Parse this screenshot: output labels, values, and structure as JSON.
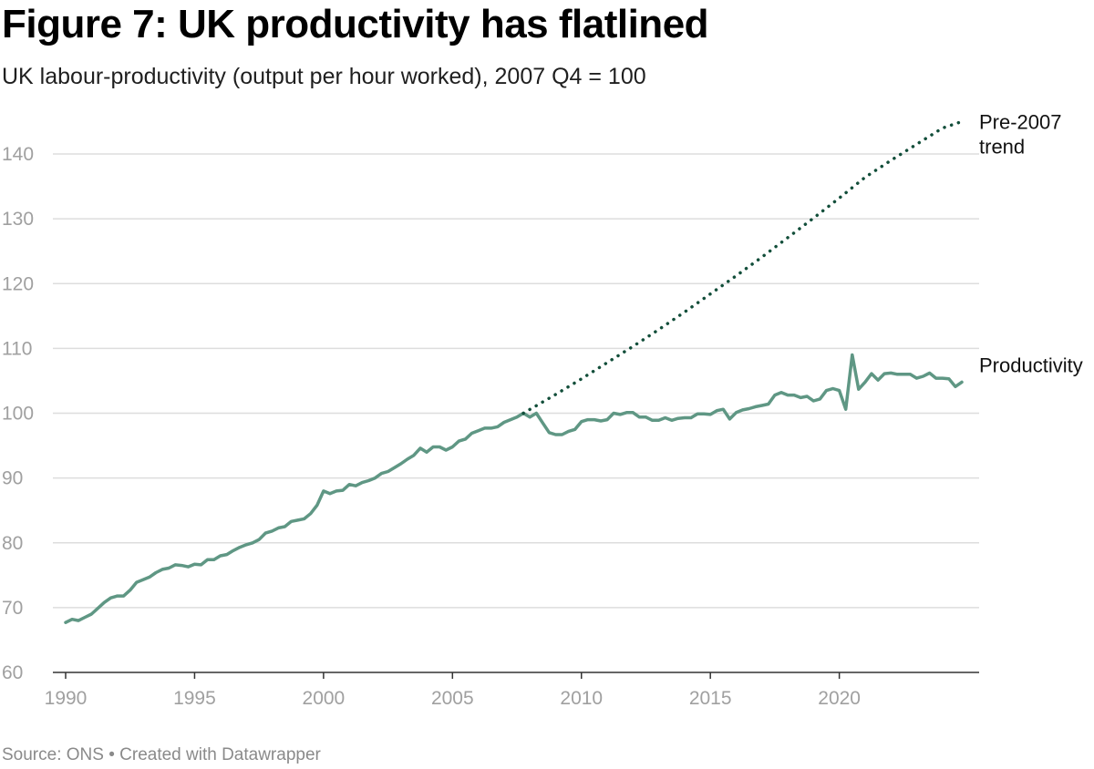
{
  "header": {
    "title": "Figure 7: UK productivity has flatlined",
    "subtitle": "UK labour-productivity (output per hour worked), 2007 Q4 = 100"
  },
  "footer": {
    "source": "Source: ONS • Created with Datawrapper"
  },
  "colors": {
    "productivity": "#5f9784",
    "trend": "#124e3a",
    "grid": "#dddddd",
    "axis": "#333333"
  },
  "chart_data": {
    "type": "line",
    "title": "Figure 7: UK productivity has flatlined",
    "xlabel": "",
    "ylabel": "",
    "xlim": [
      1989.75,
      2025.0
    ],
    "ylim": [
      60,
      145
    ],
    "x_ticks": [
      1990,
      1995,
      2000,
      2005,
      2010,
      2015,
      2020
    ],
    "x_tick_labels": [
      "1990",
      "1995",
      "2000",
      "2005",
      "2010",
      "2015",
      "2020"
    ],
    "y_ticks": [
      60,
      70,
      80,
      90,
      100,
      110,
      120,
      130,
      140
    ],
    "y_tick_labels": [
      "60",
      "70",
      "80",
      "90",
      "100",
      "110",
      "120",
      "130",
      "140"
    ],
    "grid": true,
    "series": [
      {
        "name": "Productivity",
        "label": "Productivity",
        "style": "solid",
        "points": [
          [
            1990.0,
            67.7
          ],
          [
            1990.25,
            68.2
          ],
          [
            1990.5,
            68.0
          ],
          [
            1990.75,
            68.5
          ],
          [
            1991.0,
            69.0
          ],
          [
            1991.25,
            69.9
          ],
          [
            1991.5,
            70.8
          ],
          [
            1991.75,
            71.5
          ],
          [
            1992.0,
            71.8
          ],
          [
            1992.25,
            71.8
          ],
          [
            1992.5,
            72.7
          ],
          [
            1992.75,
            73.9
          ],
          [
            1993.0,
            74.3
          ],
          [
            1993.25,
            74.7
          ],
          [
            1993.5,
            75.4
          ],
          [
            1993.75,
            75.9
          ],
          [
            1994.0,
            76.1
          ],
          [
            1994.25,
            76.6
          ],
          [
            1994.5,
            76.5
          ],
          [
            1994.75,
            76.3
          ],
          [
            1995.0,
            76.7
          ],
          [
            1995.25,
            76.6
          ],
          [
            1995.5,
            77.4
          ],
          [
            1995.75,
            77.4
          ],
          [
            1996.0,
            78.0
          ],
          [
            1996.25,
            78.2
          ],
          [
            1996.5,
            78.8
          ],
          [
            1996.75,
            79.3
          ],
          [
            1997.0,
            79.7
          ],
          [
            1997.25,
            80.0
          ],
          [
            1997.5,
            80.5
          ],
          [
            1997.75,
            81.5
          ],
          [
            1998.0,
            81.8
          ],
          [
            1998.25,
            82.3
          ],
          [
            1998.5,
            82.5
          ],
          [
            1998.75,
            83.3
          ],
          [
            1999.0,
            83.5
          ],
          [
            1999.25,
            83.7
          ],
          [
            1999.5,
            84.5
          ],
          [
            1999.75,
            85.8
          ],
          [
            2000.0,
            88.0
          ],
          [
            2000.25,
            87.6
          ],
          [
            2000.5,
            88.0
          ],
          [
            2000.75,
            88.1
          ],
          [
            2001.0,
            89.0
          ],
          [
            2001.25,
            88.8
          ],
          [
            2001.5,
            89.3
          ],
          [
            2001.75,
            89.6
          ],
          [
            2002.0,
            90.0
          ],
          [
            2002.25,
            90.7
          ],
          [
            2002.5,
            91.0
          ],
          [
            2002.75,
            91.6
          ],
          [
            2003.0,
            92.2
          ],
          [
            2003.25,
            92.9
          ],
          [
            2003.5,
            93.5
          ],
          [
            2003.75,
            94.6
          ],
          [
            2004.0,
            94.0
          ],
          [
            2004.25,
            94.8
          ],
          [
            2004.5,
            94.8
          ],
          [
            2004.75,
            94.3
          ],
          [
            2005.0,
            94.8
          ],
          [
            2005.25,
            95.7
          ],
          [
            2005.5,
            96.0
          ],
          [
            2005.75,
            96.9
          ],
          [
            2006.0,
            97.3
          ],
          [
            2006.25,
            97.7
          ],
          [
            2006.5,
            97.7
          ],
          [
            2006.75,
            97.9
          ],
          [
            2007.0,
            98.6
          ],
          [
            2007.25,
            99.0
          ],
          [
            2007.5,
            99.4
          ],
          [
            2007.75,
            100.0
          ],
          [
            2008.0,
            99.4
          ],
          [
            2008.25,
            100.0
          ],
          [
            2008.5,
            98.5
          ],
          [
            2008.75,
            97.0
          ],
          [
            2009.0,
            96.7
          ],
          [
            2009.25,
            96.7
          ],
          [
            2009.5,
            97.2
          ],
          [
            2009.75,
            97.5
          ],
          [
            2010.0,
            98.7
          ],
          [
            2010.25,
            99.0
          ],
          [
            2010.5,
            99.0
          ],
          [
            2010.75,
            98.8
          ],
          [
            2011.0,
            99.0
          ],
          [
            2011.25,
            100.0
          ],
          [
            2011.5,
            99.8
          ],
          [
            2011.75,
            100.1
          ],
          [
            2012.0,
            100.1
          ],
          [
            2012.25,
            99.4
          ],
          [
            2012.5,
            99.4
          ],
          [
            2012.75,
            98.9
          ],
          [
            2013.0,
            98.9
          ],
          [
            2013.25,
            99.3
          ],
          [
            2013.5,
            98.9
          ],
          [
            2013.75,
            99.2
          ],
          [
            2014.0,
            99.3
          ],
          [
            2014.25,
            99.3
          ],
          [
            2014.5,
            99.9
          ],
          [
            2014.75,
            99.9
          ],
          [
            2015.0,
            99.8
          ],
          [
            2015.25,
            100.4
          ],
          [
            2015.5,
            100.6
          ],
          [
            2015.75,
            99.1
          ],
          [
            2016.0,
            100.1
          ],
          [
            2016.25,
            100.5
          ],
          [
            2016.5,
            100.7
          ],
          [
            2016.75,
            101.0
          ],
          [
            2017.0,
            101.2
          ],
          [
            2017.25,
            101.4
          ],
          [
            2017.5,
            102.8
          ],
          [
            2017.75,
            103.2
          ],
          [
            2018.0,
            102.8
          ],
          [
            2018.25,
            102.8
          ],
          [
            2018.5,
            102.4
          ],
          [
            2018.75,
            102.6
          ],
          [
            2019.0,
            101.9
          ],
          [
            2019.25,
            102.2
          ],
          [
            2019.5,
            103.5
          ],
          [
            2019.75,
            103.8
          ],
          [
            2020.0,
            103.5
          ],
          [
            2020.25,
            100.6
          ],
          [
            2020.5,
            109.0
          ],
          [
            2020.75,
            103.7
          ],
          [
            2021.0,
            104.8
          ],
          [
            2021.25,
            106.1
          ],
          [
            2021.5,
            105.1
          ],
          [
            2021.75,
            106.1
          ],
          [
            2022.0,
            106.2
          ],
          [
            2022.25,
            106.0
          ],
          [
            2022.5,
            106.0
          ],
          [
            2022.75,
            106.0
          ],
          [
            2023.0,
            105.4
          ],
          [
            2023.25,
            105.7
          ],
          [
            2023.5,
            106.2
          ],
          [
            2023.75,
            105.4
          ],
          [
            2024.0,
            105.4
          ],
          [
            2024.25,
            105.3
          ],
          [
            2024.5,
            104.1
          ],
          [
            2024.75,
            104.8
          ]
        ]
      },
      {
        "name": "Pre-2007 trend",
        "label": "Pre-2007 trend",
        "style": "dotted",
        "points": [
          [
            2007.75,
            100.0
          ],
          [
            2009.0,
            102.9
          ],
          [
            2010.0,
            105.3
          ],
          [
            2011.0,
            107.8
          ],
          [
            2012.0,
            110.3
          ],
          [
            2013.0,
            112.9
          ],
          [
            2014.0,
            115.6
          ],
          [
            2015.0,
            118.4
          ],
          [
            2016.0,
            121.2
          ],
          [
            2017.0,
            124.1
          ],
          [
            2018.0,
            127.1
          ],
          [
            2019.0,
            130.1
          ],
          [
            2020.0,
            133.2
          ],
          [
            2021.0,
            136.4
          ],
          [
            2022.0,
            139.0
          ],
          [
            2023.0,
            141.5
          ],
          [
            2024.0,
            144.0
          ],
          [
            2024.75,
            145.0
          ]
        ]
      }
    ]
  }
}
